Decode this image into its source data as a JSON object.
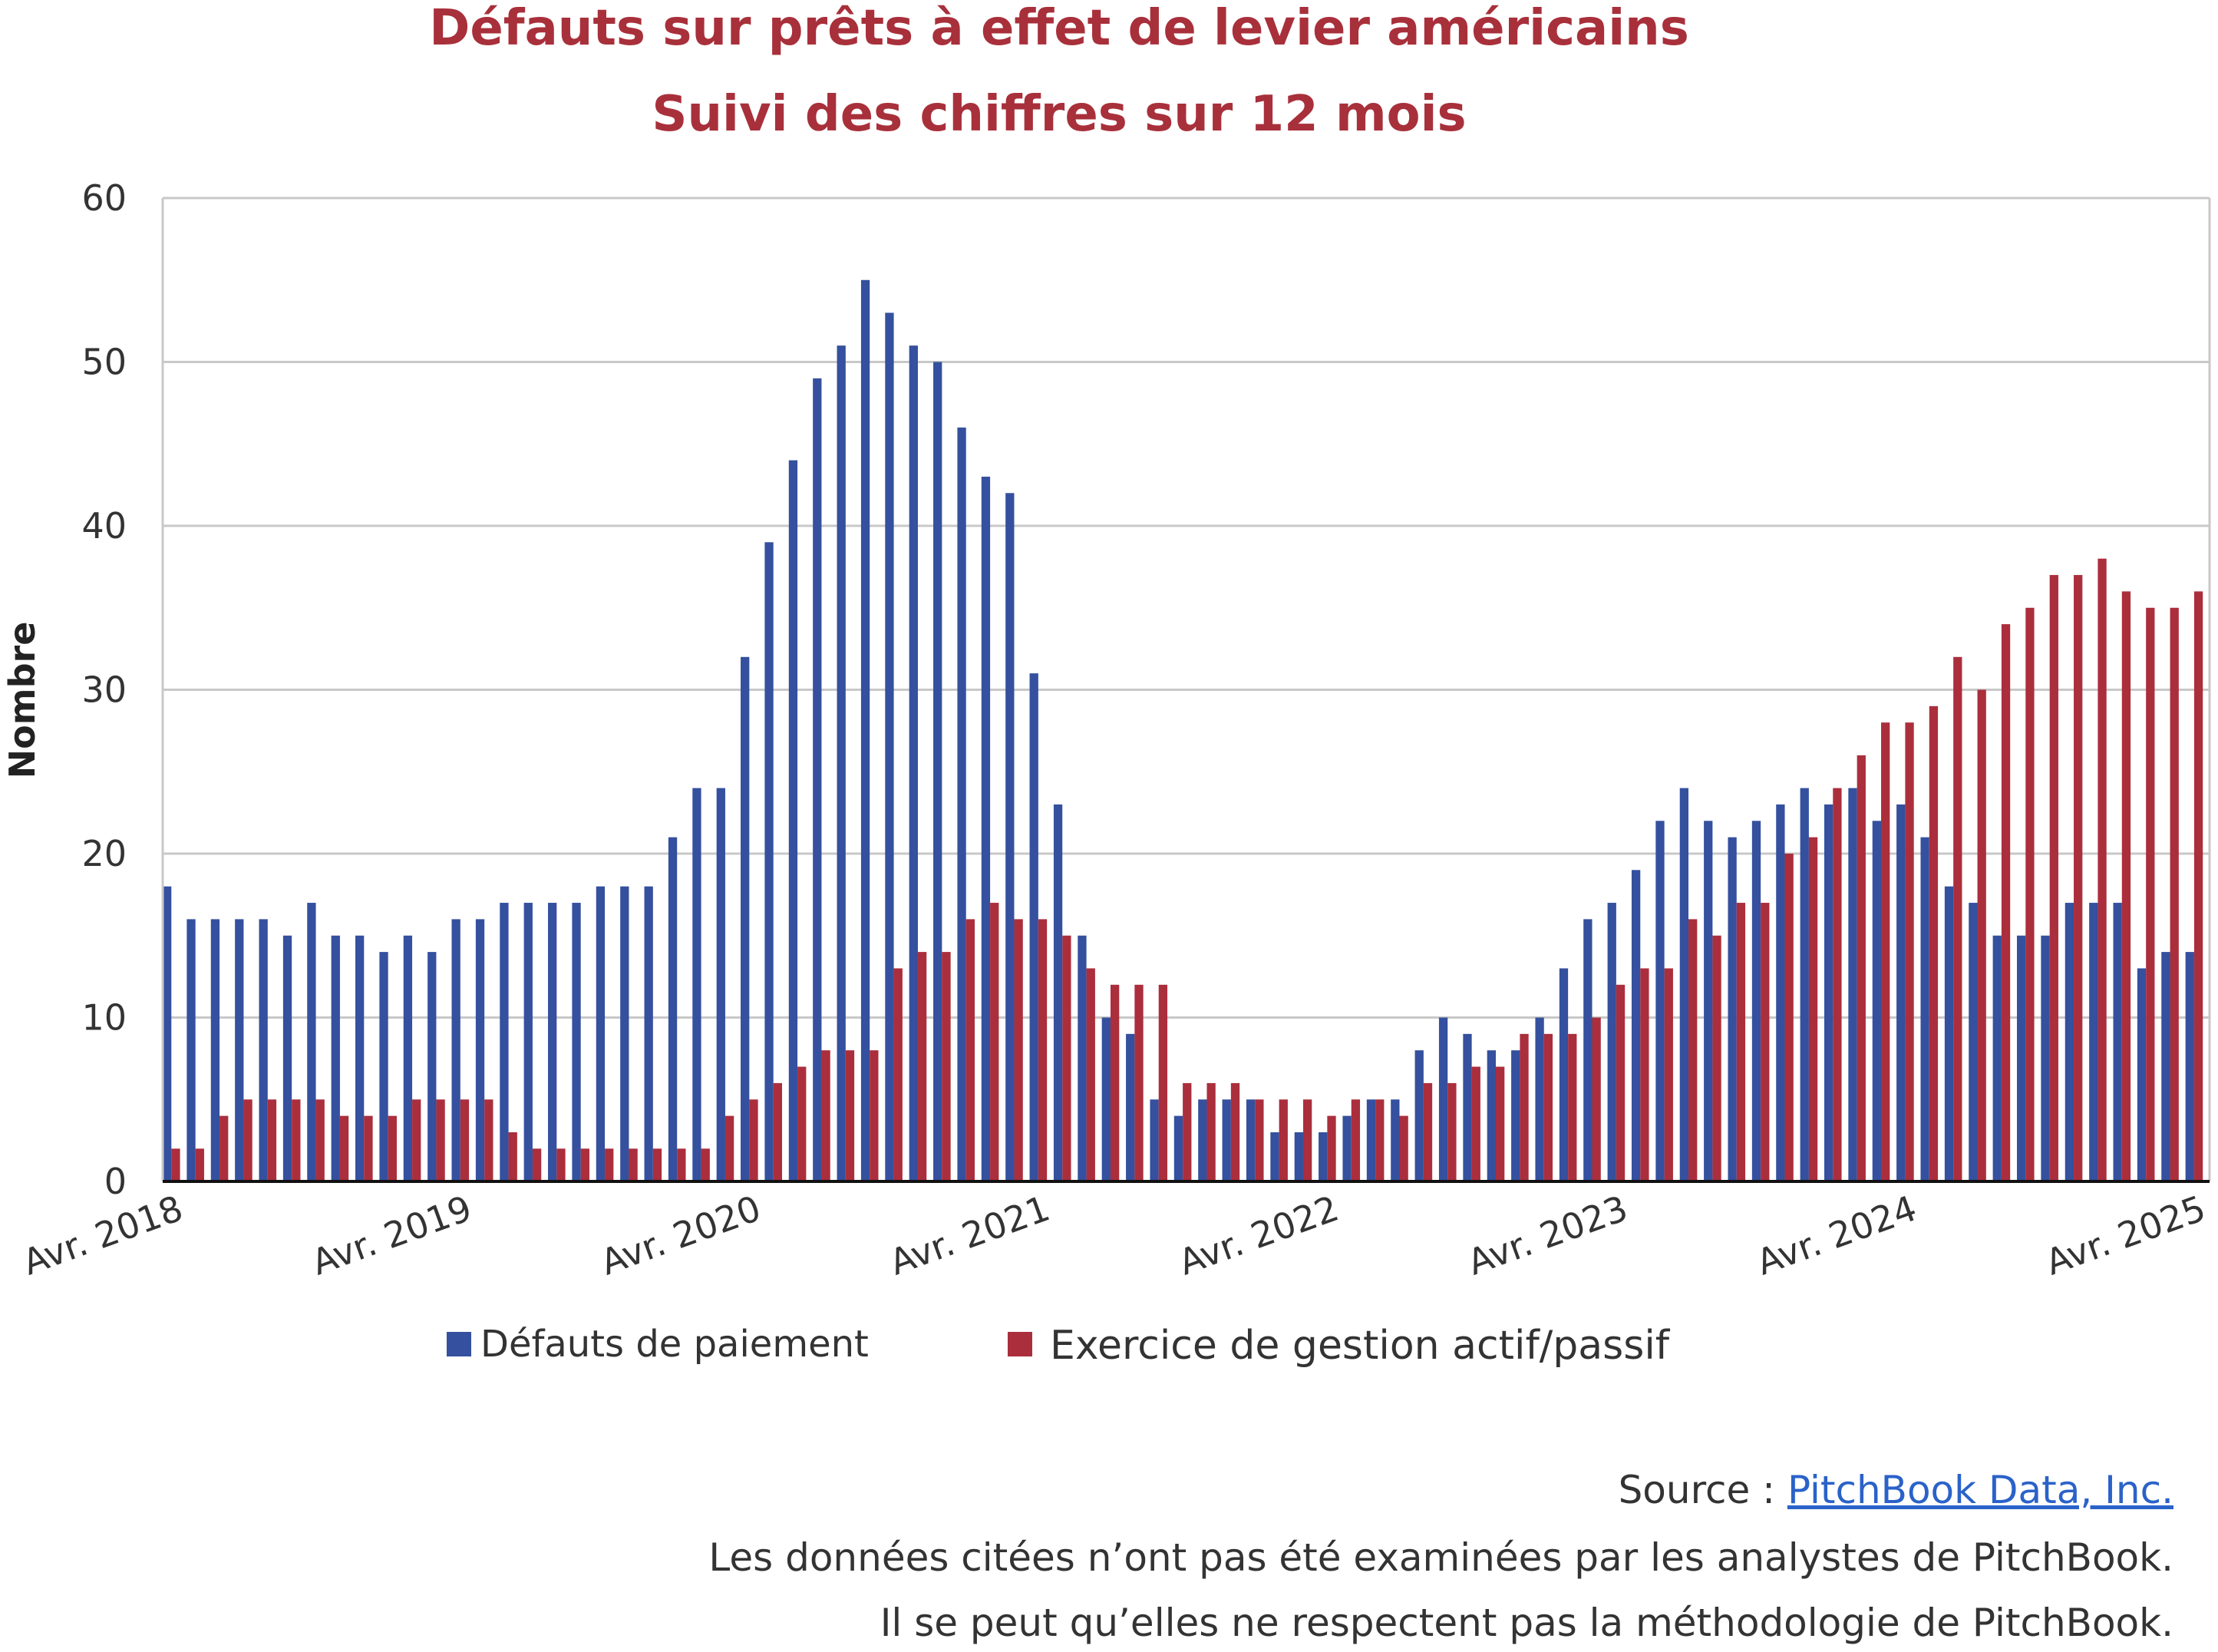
{
  "title": "Défauts sur prêts à effet de levier américains",
  "subtitle": "Suivi des chiffres sur 12 mois",
  "colors": {
    "title": "#a8303b",
    "payment_defaults": "#34509e",
    "lme": "#ab2e3c",
    "grid": "#c8c8c8"
  },
  "chart_data": {
    "type": "bar",
    "title": "Défauts sur prêts à effet de levier américains",
    "subtitle": "Suivi des chiffres sur 12 mois",
    "ylabel": "Nombre",
    "xlabel": "",
    "ylim": [
      0,
      60
    ],
    "yticks": [
      0,
      10,
      20,
      30,
      40,
      50,
      60
    ],
    "grid": true,
    "legend": "bottom",
    "xtick_labels": [
      "Avr. 2018",
      "Avr. 2019",
      "Avr. 2020",
      "Avr. 2021",
      "Avr. 2022",
      "Avr. 2023",
      "Avr. 2024",
      "Avr. 2025"
    ],
    "series": [
      {
        "name": "Défauts de paiement",
        "color": "#34509e",
        "values": [
          18,
          16,
          16,
          16,
          16,
          15,
          17,
          15,
          15,
          14,
          15,
          14,
          16,
          16,
          17,
          17,
          17,
          17,
          18,
          18,
          18,
          21,
          24,
          24,
          32,
          39,
          44,
          49,
          51,
          55,
          53,
          51,
          50,
          46,
          43,
          42,
          31,
          23,
          15,
          10,
          9,
          5,
          4,
          5,
          5,
          5,
          3,
          3,
          3,
          4,
          5,
          5,
          8,
          10,
          9,
          8,
          8,
          10,
          13,
          16,
          17,
          19,
          22,
          24,
          22,
          21,
          22,
          23,
          24,
          23,
          24,
          22,
          23,
          21,
          18,
          17,
          15,
          15,
          15,
          17,
          17,
          17,
          13,
          14,
          14
        ]
      },
      {
        "name": "Exercice de gestion actif/passif",
        "color": "#ab2e3c",
        "values": [
          2,
          2,
          4,
          5,
          5,
          5,
          5,
          4,
          4,
          4,
          5,
          5,
          5,
          5,
          3,
          2,
          2,
          2,
          2,
          2,
          2,
          2,
          2,
          4,
          5,
          6,
          7,
          8,
          8,
          8,
          13,
          14,
          14,
          16,
          17,
          16,
          16,
          15,
          13,
          12,
          12,
          12,
          6,
          6,
          6,
          5,
          5,
          5,
          4,
          5,
          5,
          4,
          6,
          6,
          7,
          7,
          9,
          9,
          9,
          10,
          12,
          13,
          13,
          16,
          15,
          17,
          17,
          20,
          21,
          24,
          26,
          28,
          28,
          29,
          32,
          30,
          34,
          35,
          37,
          37,
          38,
          36,
          35,
          35,
          36
        ]
      }
    ]
  },
  "source": {
    "label": "Source : ",
    "link": "PitchBook Data, Inc."
  },
  "notes": [
    "Les données citées n’ont pas été examinées par les analystes de PitchBook.",
    "Il se peut qu’elles ne respectent pas la méthodologie de PitchBook."
  ]
}
